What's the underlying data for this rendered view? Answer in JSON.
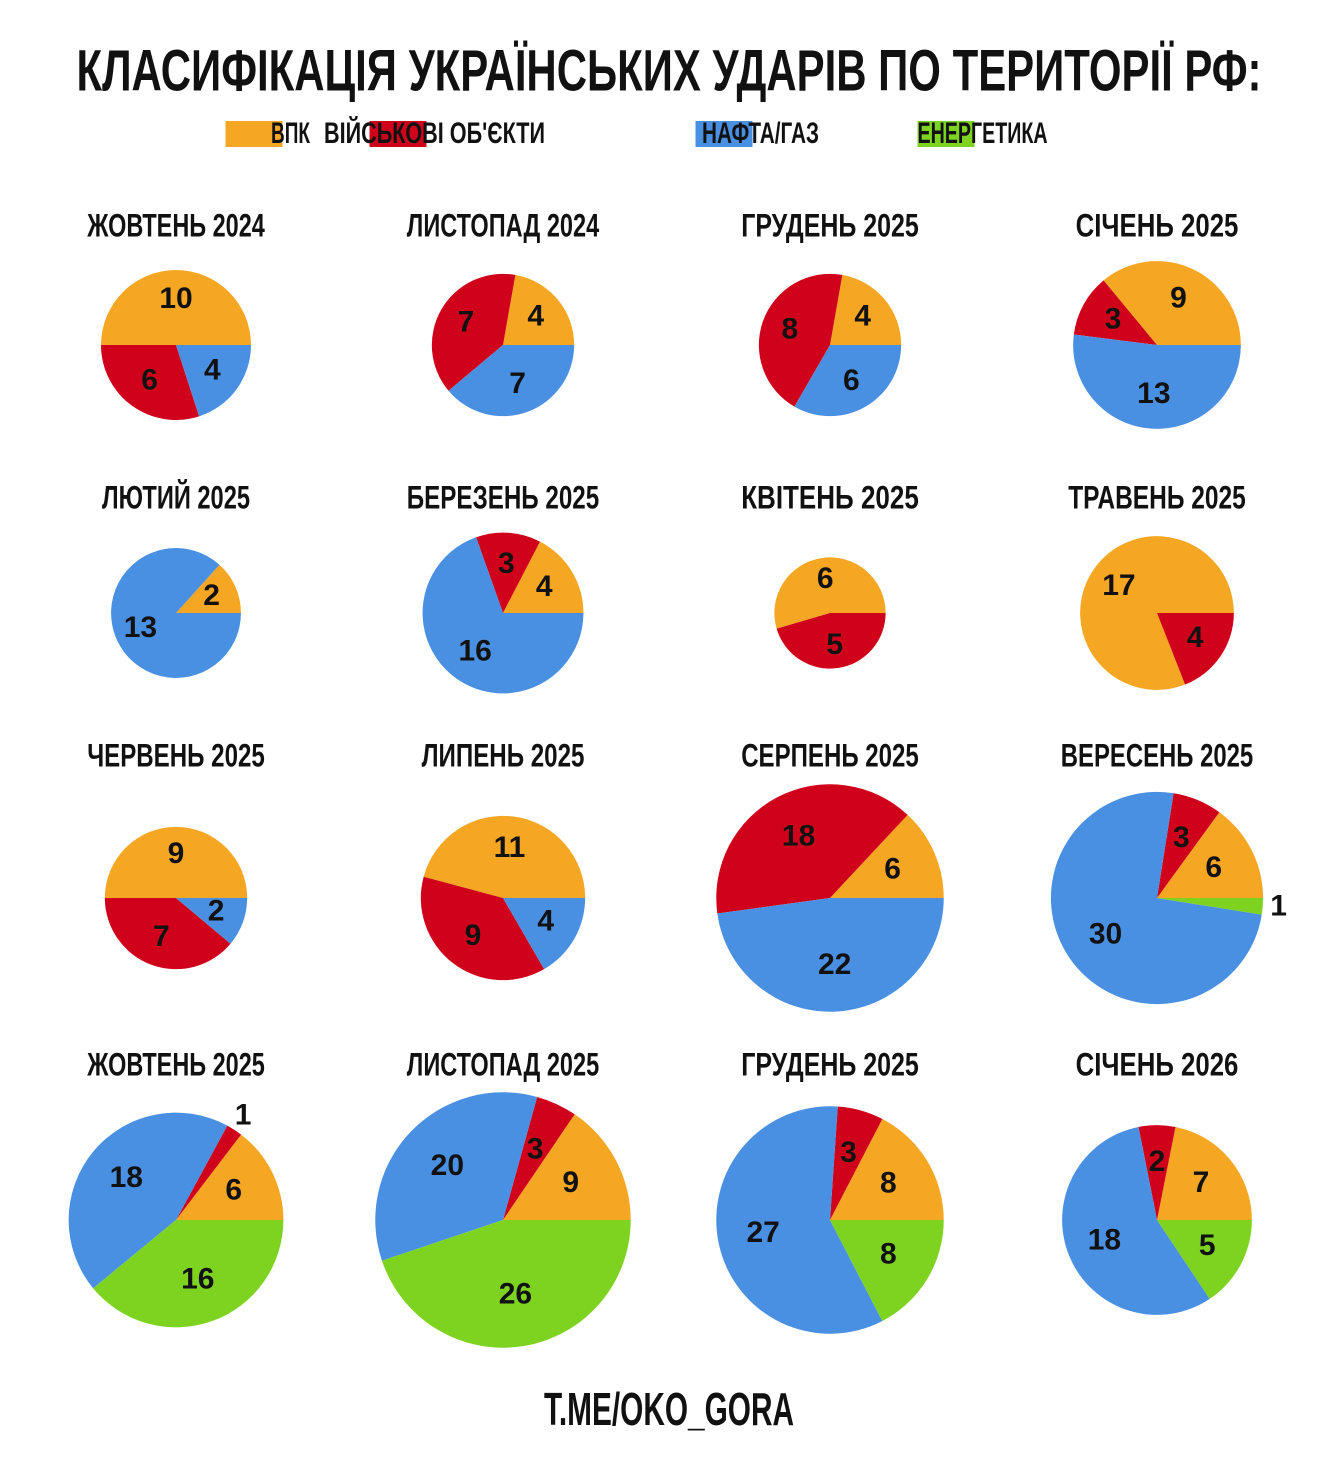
{
  "title": "КЛАСИФІКАЦІЯ УКРАЇНСЬКИХ УДАРІВ ПО ТЕРИТОРІЇ РФ:",
  "legend": {
    "labels": [
      "ВПК",
      "ВІЙСЬКОВІ ОБ'ЄКТИ",
      "НАФТА/ГАЗ",
      "ЕНЕРГЕТИКА"
    ],
    "colors": [
      "#f5a623",
      "#d0021b",
      "#4a90e2",
      "#7ed321"
    ]
  },
  "footer": "T.ME/OKO_GORA",
  "chart_data": [
    {
      "type": "pie",
      "title": "ЖОВТЕНЬ 2024",
      "categories": [
        "ВПК",
        "ВІЙСЬКОВІ ОБ'ЄКТИ",
        "НАФТА/ГАЗ"
      ],
      "values": [
        10,
        6,
        4
      ]
    },
    {
      "type": "pie",
      "title": "ЛИСТОПАД 2024",
      "categories": [
        "ВПК",
        "ВІЙСЬКОВІ ОБ'ЄКТИ",
        "НАФТА/ГАЗ"
      ],
      "values": [
        4,
        7,
        7
      ]
    },
    {
      "type": "pie",
      "title": "ГРУДЕНЬ 2025",
      "categories": [
        "ВПК",
        "ВІЙСЬКОВІ ОБ'ЄКТИ",
        "НАФТА/ГАЗ"
      ],
      "values": [
        4,
        8,
        6
      ]
    },
    {
      "type": "pie",
      "title": "СІЧЕНЬ 2025",
      "categories": [
        "ВПК",
        "ВІЙСЬКОВІ ОБ'ЄКТИ",
        "НАФТА/ГАЗ"
      ],
      "values": [
        9,
        3,
        13
      ]
    },
    {
      "type": "pie",
      "title": "ЛЮТИЙ 2025",
      "categories": [
        "ВПК",
        "НАФТА/ГАЗ"
      ],
      "values": [
        2,
        13
      ]
    },
    {
      "type": "pie",
      "title": "БЕРЕЗЕНЬ 2025",
      "categories": [
        "ВПК",
        "ВІЙСЬКОВІ ОБ'ЄКТИ",
        "НАФТА/ГАЗ"
      ],
      "values": [
        4,
        3,
        16
      ]
    },
    {
      "type": "pie",
      "title": "КВІТЕНЬ 2025",
      "categories": [
        "ВПК",
        "ВІЙСЬКОВІ ОБ'ЄКТИ"
      ],
      "values": [
        6,
        5
      ]
    },
    {
      "type": "pie",
      "title": "ТРАВЕНЬ 2025",
      "categories": [
        "ВПК",
        "ВІЙСЬКОВІ ОБ'ЄКТИ"
      ],
      "values": [
        17,
        4
      ]
    },
    {
      "type": "pie",
      "title": "ЧЕРВЕНЬ 2025",
      "categories": [
        "ВПК",
        "ВІЙСЬКОВІ ОБ'ЄКТИ",
        "НАФТА/ГАЗ"
      ],
      "values": [
        9,
        7,
        2
      ]
    },
    {
      "type": "pie",
      "title": "ЛИПЕНЬ 2025",
      "categories": [
        "ВПК",
        "ВІЙСЬКОВІ ОБ'ЄКТИ",
        "НАФТА/ГАЗ"
      ],
      "values": [
        11,
        9,
        4
      ]
    },
    {
      "type": "pie",
      "title": "СЕРПЕНЬ 2025",
      "categories": [
        "ВПК",
        "ВІЙСЬКОВІ ОБ'ЄКТИ",
        "НАФТА/ГАЗ"
      ],
      "values": [
        6,
        18,
        22
      ]
    },
    {
      "type": "pie",
      "title": "ВЕРЕСЕНЬ 2025",
      "categories": [
        "ВПК",
        "ВІЙСЬКОВІ ОБ'ЄКТИ",
        "НАФТА/ГАЗ",
        "ЕНЕРГЕТИКА"
      ],
      "values": [
        6,
        3,
        30,
        1
      ]
    },
    {
      "type": "pie",
      "title": "ЖОВТЕНЬ 2025",
      "categories": [
        "ВПК",
        "ВІЙСЬКОВІ ОБ'ЄКТИ",
        "НАФТА/ГАЗ",
        "ЕНЕРГЕТИКА"
      ],
      "values": [
        6,
        1,
        18,
        16
      ]
    },
    {
      "type": "pie",
      "title": "ЛИСТОПАД 2025",
      "categories": [
        "ВПК",
        "ВІЙСЬКОВІ ОБ'ЄКТИ",
        "НАФТА/ГАЗ",
        "ЕНЕРГЕТИКА"
      ],
      "values": [
        9,
        3,
        20,
        26
      ]
    },
    {
      "type": "pie",
      "title": "ГРУДЕНЬ 2025",
      "categories": [
        "ВПК",
        "ВІЙСЬКОВІ ОБ'ЄКТИ",
        "НАФТА/ГАЗ",
        "ЕНЕРГЕТИКА"
      ],
      "values": [
        8,
        3,
        27,
        8
      ]
    },
    {
      "type": "pie",
      "title": "СІЧЕНЬ 2026",
      "categories": [
        "ВПК",
        "ВІЙСЬКОВІ ОБ'ЄКТИ",
        "НАФТА/ГАЗ",
        "ЕНЕРГЕТИКА"
      ],
      "values": [
        7,
        2,
        18,
        5
      ]
    }
  ]
}
